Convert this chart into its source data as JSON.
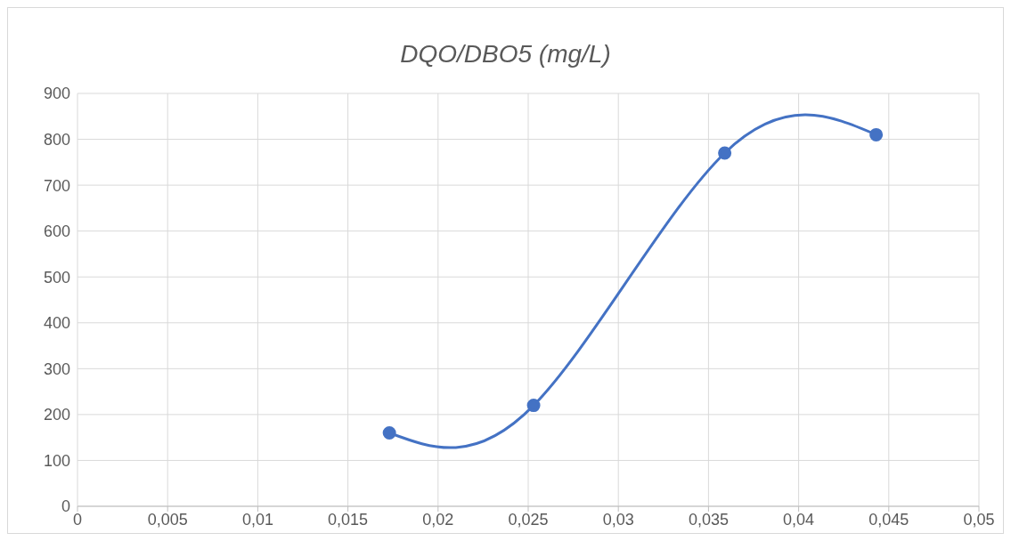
{
  "chart_data": {
    "type": "line",
    "title": "DQO/DBO5 (mg/L)",
    "x": [
      0.0173,
      0.0253,
      0.0359,
      0.0443
    ],
    "series": [
      {
        "color": "#4472c4",
        "values": [
          160,
          220,
          770,
          810
        ]
      }
    ],
    "xlim": [
      0,
      0.05
    ],
    "xticks": [
      {
        "value": 0,
        "label": "0"
      },
      {
        "value": 0.005,
        "label": "0,005"
      },
      {
        "value": 0.01,
        "label": "0,01"
      },
      {
        "value": 0.015,
        "label": "0,015"
      },
      {
        "value": 0.02,
        "label": "0,02"
      },
      {
        "value": 0.025,
        "label": "0,025"
      },
      {
        "value": 0.03,
        "label": "0,03"
      },
      {
        "value": 0.035,
        "label": "0,035"
      },
      {
        "value": 0.04,
        "label": "0,04"
      },
      {
        "value": 0.045,
        "label": "0,045"
      },
      {
        "value": 0.05,
        "label": "0,05"
      }
    ],
    "ylim": [
      0,
      900
    ],
    "yticks": [
      0,
      100,
      200,
      300,
      400,
      500,
      600,
      700,
      800,
      900
    ],
    "grid": true,
    "marker": "circle",
    "line_style": "solid",
    "legend": false
  }
}
